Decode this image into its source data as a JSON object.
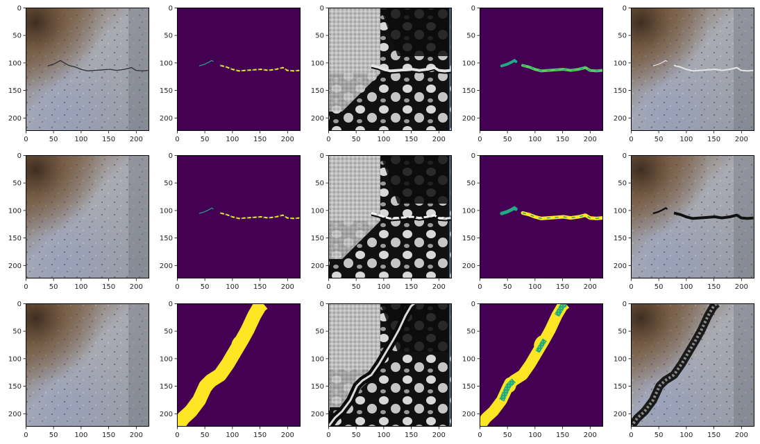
{
  "figure": {
    "rows": 3,
    "cols": 5,
    "panel_types": [
      "photo",
      "mask",
      "feature",
      "prob",
      "overlay"
    ],
    "row_cracks": [
      "thin",
      "thin",
      "diagonal"
    ],
    "tick_labels": {
      "x": [
        "0",
        "50",
        "100",
        "150",
        "200"
      ],
      "y": [
        "0",
        "50",
        "100",
        "150",
        "200"
      ]
    },
    "colors": {
      "viridis_dark": "#440154",
      "viridis_yellow": "#fde725",
      "viridis_teal": "#22a884",
      "viridis_green": "#5ec962",
      "concrete": "#9a9da4",
      "frame": "#000000"
    }
  }
}
